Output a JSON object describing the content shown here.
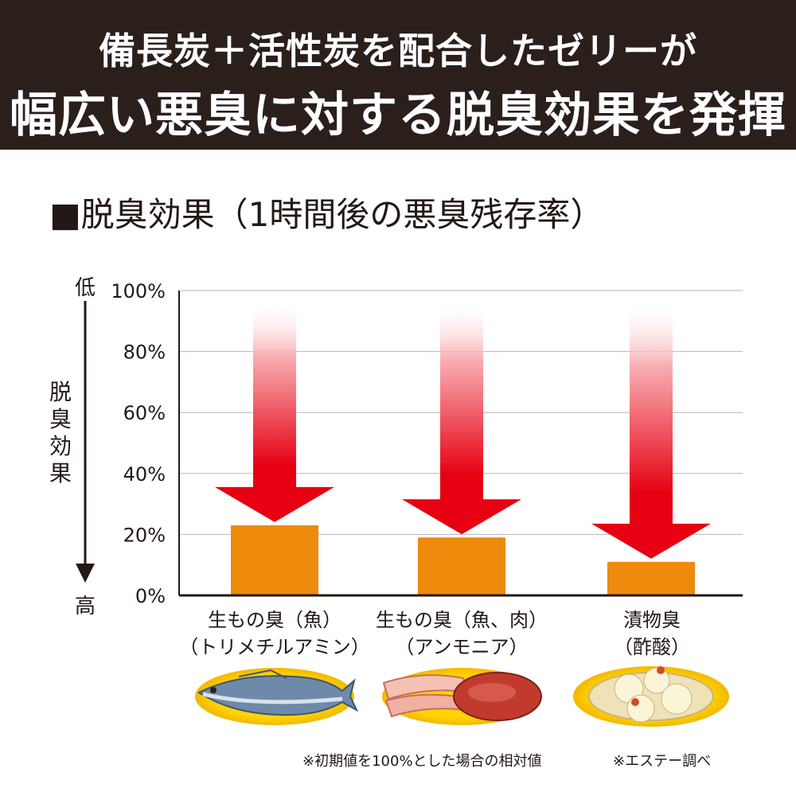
{
  "header": {
    "line1": "備長炭＋活性炭を配合したゼリーが",
    "line2": "幅広い悪臭に対する脱臭効果を発揮"
  },
  "colors": {
    "header_bg": "#2b1f1c",
    "bar": "#ee8a0c",
    "arrow": "#e60012",
    "plate": "#f7c600"
  },
  "chart_data": {
    "type": "bar",
    "title": "■脱臭効果（1時間後の悪臭残存率）",
    "categories": [
      "生もの臭（魚）\n（トリメチルアミン）",
      "生もの臭（魚、肉）\n（アンモニア）",
      "漬物臭\n（酢酸）"
    ],
    "category_lines": [
      [
        "生もの臭（魚）",
        "（トリメチルアミン）"
      ],
      [
        "生もの臭（魚、肉）",
        "（アンモニア）"
      ],
      [
        "漬物臭",
        "（酢酸）"
      ]
    ],
    "values": [
      23,
      19,
      11
    ],
    "ylim": [
      0,
      100
    ],
    "yticks": [
      0,
      20,
      40,
      60,
      80,
      100
    ],
    "ytick_labels": [
      "0%",
      "20%",
      "40%",
      "60%",
      "80%",
      "100%"
    ],
    "ylabel": "脱臭効果",
    "ylabel_top": "低",
    "ylabel_bottom": "高",
    "grid": true,
    "annotations": [
      "arrows from 100% down to each bar"
    ]
  },
  "notes": {
    "relative": "※初期値を100%とした場合の相対値",
    "source": "※エステー調べ"
  },
  "images": [
    "fish-icon",
    "meat-icon",
    "pickles-icon"
  ]
}
